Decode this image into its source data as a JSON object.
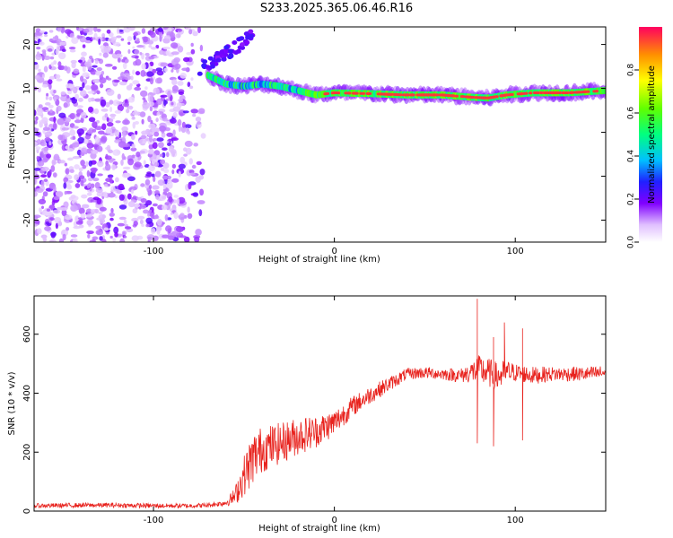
{
  "title": "S233.2025.365.06.46.R16",
  "chart_data": [
    {
      "type": "heatmap",
      "xlabel": "Height of straight line (km)",
      "ylabel": "Frequency (Hz)",
      "xlim": [
        -166,
        150
      ],
      "ylim": [
        -25,
        24
      ],
      "x_ticks": [
        -100,
        0,
        100
      ],
      "y_ticks": [
        20,
        10,
        0,
        -10,
        -20
      ],
      "colorbar": {
        "label": "Normalized spectral amplitude",
        "range": [
          0,
          1
        ],
        "ticks": [
          0.0,
          0.2,
          0.4,
          0.6,
          0.8
        ],
        "colors": [
          "#ffffff",
          "#c080ff",
          "#3000ff",
          "#00c0ff",
          "#00ff60",
          "#c0ff00",
          "#ffb000",
          "#ff0050"
        ]
      },
      "noise_region": {
        "x_from": -166,
        "x_to": -70,
        "freq_from": -25,
        "freq_to": 24,
        "amplitude": 0.2
      },
      "signal_ridge": [
        {
          "x": -70,
          "freq": 13
        },
        {
          "x": -60,
          "freq": 11
        },
        {
          "x": -50,
          "freq": 10.5
        },
        {
          "x": -40,
          "freq": 11
        },
        {
          "x": -30,
          "freq": 10.5
        },
        {
          "x": -20,
          "freq": 9.5
        },
        {
          "x": -10,
          "freq": 8.5
        },
        {
          "x": 0,
          "freq": 9
        },
        {
          "x": 20,
          "freq": 8.8
        },
        {
          "x": 40,
          "freq": 8.5
        },
        {
          "x": 60,
          "freq": 8.5
        },
        {
          "x": 75,
          "freq": 8
        },
        {
          "x": 85,
          "freq": 7.8
        },
        {
          "x": 95,
          "freq": 8.5
        },
        {
          "x": 110,
          "freq": 9
        },
        {
          "x": 130,
          "freq": 9
        },
        {
          "x": 150,
          "freq": 9.5
        }
      ],
      "noise_branch": [
        {
          "x": -75,
          "freq": 14
        },
        {
          "x": -60,
          "freq": 18
        },
        {
          "x": -45,
          "freq": 22
        }
      ]
    },
    {
      "type": "line",
      "xlabel": "Height of straight line (km)",
      "ylabel": "SNR (10 * v/v)",
      "xlim": [
        -166,
        150
      ],
      "ylim": [
        0,
        730
      ],
      "x_ticks": [
        -100,
        0,
        100
      ],
      "y_ticks": [
        0,
        200,
        400,
        600
      ],
      "series": [
        {
          "color": "#e8231e",
          "x": [
            -166,
            -140,
            -120,
            -100,
            -80,
            -70,
            -60,
            -55,
            -50,
            -45,
            -40,
            -30,
            -20,
            -10,
            0,
            10,
            20,
            30,
            40,
            50,
            60,
            70,
            75,
            80,
            85,
            90,
            95,
            100,
            110,
            120,
            130,
            140,
            150
          ],
          "y": [
            18,
            20,
            20,
            18,
            18,
            20,
            28,
            50,
            120,
            180,
            210,
            230,
            255,
            270,
            300,
            355,
            395,
            430,
            465,
            470,
            465,
            460,
            470,
            480,
            470,
            455,
            470,
            470,
            460,
            465,
            465,
            465,
            470
          ],
          "noise_amplitude": [
            8,
            8,
            8,
            8,
            8,
            8,
            10,
            30,
            70,
            90,
            80,
            70,
            65,
            55,
            45,
            35,
            30,
            25,
            20,
            20,
            20,
            25,
            35,
            50,
            50,
            50,
            45,
            30,
            30,
            25,
            25,
            25,
            25
          ]
        }
      ],
      "annotations": [
        {
          "x": 79,
          "y": 720
        },
        {
          "x": 79,
          "y": 230
        },
        {
          "x": 88,
          "y": 590
        },
        {
          "x": 88,
          "y": 220
        },
        {
          "x": 94,
          "y": 640
        },
        {
          "x": 104,
          "y": 620
        },
        {
          "x": 104,
          "y": 240
        }
      ]
    }
  ]
}
